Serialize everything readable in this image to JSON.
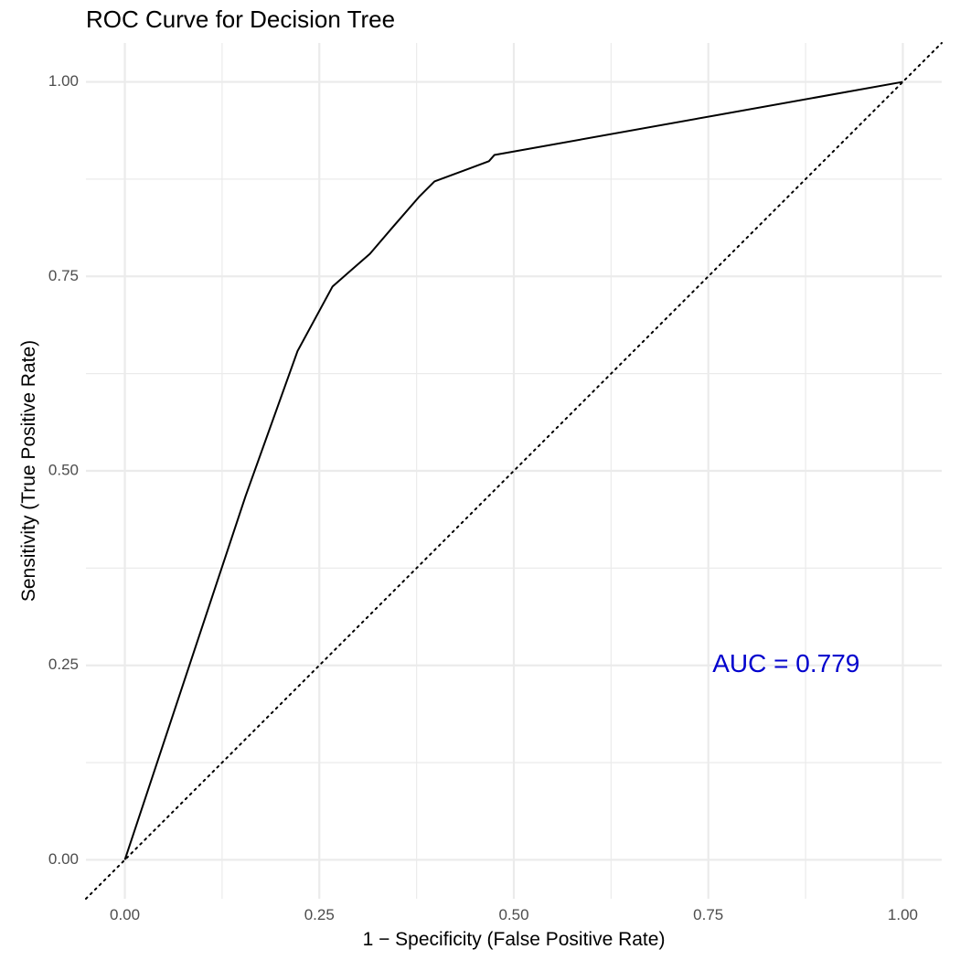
{
  "chart_data": {
    "type": "line",
    "title": "ROC Curve for Decision Tree",
    "xlabel": "1 − Specificity (False Positive Rate)",
    "ylabel": "Sensitivity (True Positive Rate)",
    "xlim": [
      -0.05,
      1.05
    ],
    "ylim": [
      -0.05,
      1.05
    ],
    "x_ticks": [
      {
        "value": 0.0,
        "label": "0.00"
      },
      {
        "value": 0.25,
        "label": "0.25"
      },
      {
        "value": 0.5,
        "label": "0.50"
      },
      {
        "value": 0.75,
        "label": "0.75"
      },
      {
        "value": 1.0,
        "label": "1.00"
      }
    ],
    "y_ticks": [
      {
        "value": 0.0,
        "label": "0.00"
      },
      {
        "value": 0.25,
        "label": "0.25"
      },
      {
        "value": 0.5,
        "label": "0.50"
      },
      {
        "value": 0.75,
        "label": "0.75"
      },
      {
        "value": 1.0,
        "label": "1.00"
      }
    ],
    "grid": true,
    "legend": "none",
    "series": [
      {
        "x": [
          0.0,
          0.155,
          0.222,
          0.267,
          0.315,
          0.345,
          0.378,
          0.398,
          0.468,
          0.475,
          1.0
        ],
        "y": [
          0.0,
          0.467,
          0.654,
          0.737,
          0.779,
          0.814,
          0.852,
          0.872,
          0.898,
          0.906,
          1.0
        ],
        "style": "solid",
        "color": "#000000"
      },
      {
        "x": [
          -0.05,
          1.05
        ],
        "y": [
          -0.05,
          1.05
        ],
        "style": "dotted",
        "color": "#000000"
      }
    ],
    "annotations": [
      {
        "text": "AUC = 0.779",
        "x": 0.85,
        "y": 0.25,
        "color": "#0000CD"
      }
    ],
    "colors": {
      "background": "#ffffff",
      "grid": "#ebebeb",
      "tick_text": "#4d4d4d"
    }
  }
}
